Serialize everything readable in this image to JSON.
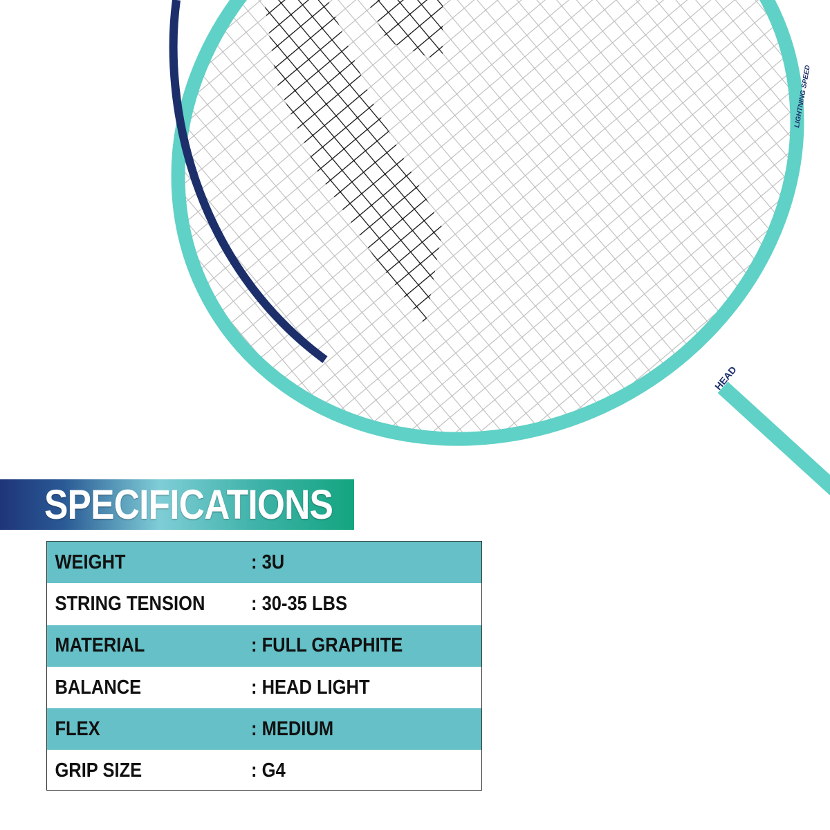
{
  "product_image": {
    "frame_color": "#5fd1c6",
    "frame_accent_color": "#1c2f6b",
    "strings_color": "#ffffff",
    "stencil_color": "#111111",
    "logo_text": "HEAD",
    "frame_text": "LIGHTNING SPEED"
  },
  "specifications": {
    "title": "SPECIFICATIONS",
    "colors": {
      "row_highlight": "#65c0c7",
      "banner_start": "#1f3579",
      "banner_end": "#13a57f"
    },
    "rows": [
      {
        "label": "WEIGHT",
        "value": ": 3U"
      },
      {
        "label": "STRING TENSION",
        "value": ": 30-35 LBS"
      },
      {
        "label": "MATERIAL",
        "value": ": FULL GRAPHITE"
      },
      {
        "label": "BALANCE",
        "value": ": HEAD LIGHT"
      },
      {
        "label": "FLEX",
        "value": ": MEDIUM"
      },
      {
        "label": "GRIP SIZE",
        "value": ": G4"
      }
    ]
  }
}
